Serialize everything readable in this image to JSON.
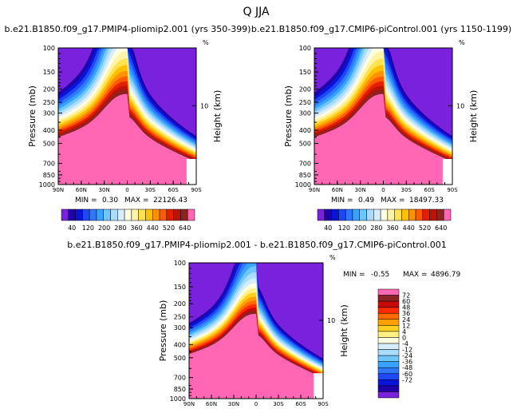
{
  "page_title": "Q  JJA",
  "chart_data": [
    {
      "type": "contour",
      "title": "b.e21.B1850.f09_g17.PMIP4-pliomip2.001  (yrs 350-399)",
      "ylabel": "Pressure (mb)",
      "ylabel_right": "Height (km)",
      "right_axis_unit": "%",
      "y_ticks": [
        "100",
        "150",
        "200",
        "250",
        "300",
        "400",
        "500",
        "700",
        "850",
        "1000"
      ],
      "x_ticks": [
        "90N",
        "60N",
        "30N",
        "0",
        "30S",
        "60S",
        "90S"
      ],
      "right_ticks": [
        "10"
      ],
      "min_label": "MIN =",
      "min_value": "0.30",
      "max_label": "MAX =",
      "max_value": "22126.43",
      "colorbar_labels": [
        "40",
        "120",
        "200",
        "280",
        "360",
        "440",
        "520",
        "640"
      ]
    },
    {
      "type": "contour",
      "title": "b.e21.B1850.f09_g17.CMIP6-piControl.001  (yrs 1150-1199)",
      "ylabel": "Pressure (mb)",
      "ylabel_right": "Height (km)",
      "right_axis_unit": "%",
      "y_ticks": [
        "100",
        "150",
        "200",
        "250",
        "300",
        "400",
        "500",
        "700",
        "850",
        "1000"
      ],
      "x_ticks": [
        "90N",
        "60N",
        "30N",
        "0",
        "30S",
        "60S",
        "90S"
      ],
      "right_ticks": [
        "10"
      ],
      "min_label": "MIN =",
      "min_value": "0.49",
      "max_label": "MAX =",
      "max_value": "18497.33",
      "colorbar_labels": [
        "40",
        "120",
        "200",
        "280",
        "360",
        "440",
        "520",
        "640"
      ]
    },
    {
      "type": "contour",
      "title": "b.e21.B1850.f09_g17.PMIP4-pliomip2.001  -  b.e21.B1850.f09_g17.CMIP6-piControl.001",
      "ylabel": "Pressure (mb)",
      "ylabel_right": "Height (km)",
      "right_axis_unit": "%",
      "y_ticks": [
        "100",
        "150",
        "200",
        "250",
        "300",
        "400",
        "500",
        "700",
        "850",
        "1000"
      ],
      "x_ticks": [
        "90N",
        "60N",
        "30N",
        "0",
        "30S",
        "60S",
        "90S"
      ],
      "right_ticks": [
        "10"
      ],
      "min_label": "MIN =",
      "min_value": "-0.55",
      "max_label": "MAX =",
      "max_value": "4896.79",
      "colorbar_labels": [
        "72",
        "60",
        "48",
        "36",
        "24",
        "12",
        "4",
        "0",
        "-4",
        "-12",
        "-24",
        "-36",
        "-48",
        "-60",
        "-72"
      ]
    }
  ],
  "colors": {
    "abs_scale": [
      "#7A21DD",
      "#1F00A8",
      "#0A14D9",
      "#1E47F5",
      "#2E78FF",
      "#37A2FF",
      "#6EC6FF",
      "#A9DCFF",
      "#D6EDFF",
      "#FFFFE0",
      "#FFF3A8",
      "#FFE24D",
      "#FFC000",
      "#FF9100",
      "#FF5A00",
      "#E51E00",
      "#B8140A",
      "#8C2323",
      "#FF66B3"
    ],
    "diff_scale": [
      "#FF66B3",
      "#8C2323",
      "#C80A0A",
      "#FF2A00",
      "#FF6A00",
      "#FFA000",
      "#FFD020",
      "#FFF080",
      "#FFFFE0",
      "#D6EDFF",
      "#A9DCFF",
      "#6EC6FF",
      "#37A2FF",
      "#2E78FF",
      "#1E47F5",
      "#0A14D9",
      "#1F00A8",
      "#7A21DD"
    ]
  }
}
